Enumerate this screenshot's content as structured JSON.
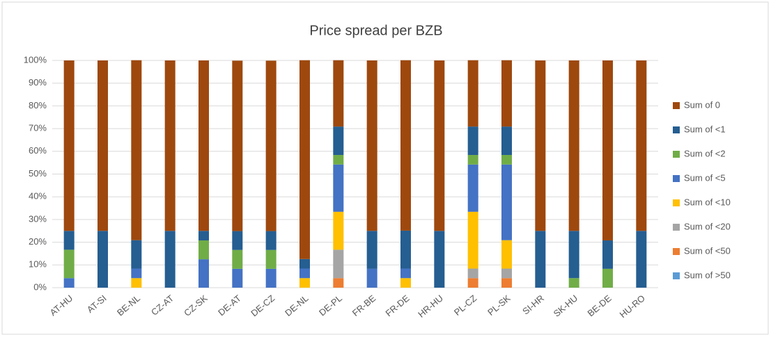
{
  "chart_data": {
    "type": "stacked_bar",
    "title": "Price spread per BZB",
    "categories": [
      "AT-HU",
      "AT-SI",
      "BE-NL",
      "CZ-AT",
      "CZ-SK",
      "DE-AT",
      "DE-CZ",
      "DE-NL",
      "DE-PL",
      "FR-BE",
      "FR-DE",
      "HR-HU",
      "PL-CZ",
      "PL-SK",
      "SI-HR",
      "SK-HU",
      "BE-DE",
      "HU-RO"
    ],
    "series": [
      {
        "name": "Sum of 0",
        "color": "#9e480e",
        "values": [
          75,
          75,
          79.2,
          75,
          75,
          75,
          75,
          87.5,
          29.2,
          75,
          75,
          75,
          29.2,
          29.2,
          75,
          75,
          79.2,
          75
        ]
      },
      {
        "name": "Sum of <1",
        "color": "#255e91",
        "values": [
          8.3,
          25,
          12.5,
          25,
          4.2,
          8.3,
          8.3,
          4.2,
          12.5,
          16.7,
          16.7,
          25,
          12.5,
          12.5,
          25,
          20.8,
          12.5,
          25
        ]
      },
      {
        "name": "Sum of <2",
        "color": "#70ad47",
        "values": [
          12.5,
          0,
          0,
          0,
          8.3,
          8.3,
          8.3,
          0,
          4.2,
          0,
          0,
          0,
          4.2,
          4.2,
          0,
          4.2,
          8.3,
          0
        ]
      },
      {
        "name": "Sum of <5",
        "color": "#4472c4",
        "values": [
          4.2,
          0,
          4.2,
          0,
          12.5,
          8.3,
          8.3,
          4.2,
          20.8,
          8.3,
          4.2,
          0,
          20.8,
          33.3,
          0,
          0,
          0,
          0
        ]
      },
      {
        "name": "Sum of <10",
        "color": "#ffc000",
        "values": [
          0,
          0,
          4.2,
          0,
          0,
          0,
          0,
          4.2,
          16.7,
          0,
          4.2,
          0,
          25,
          12.5,
          0,
          0,
          0,
          0
        ]
      },
      {
        "name": "Sum of <20",
        "color": "#a5a5a5",
        "values": [
          0,
          0,
          0,
          0,
          0,
          0,
          0,
          0,
          12.5,
          0,
          0,
          0,
          4.2,
          4.2,
          0,
          0,
          0,
          0
        ]
      },
      {
        "name": "Sum of <50",
        "color": "#ed7d31",
        "values": [
          0,
          0,
          0,
          0,
          0,
          0,
          0,
          0,
          4.2,
          0,
          0,
          0,
          4.2,
          4.2,
          0,
          0,
          0,
          0
        ]
      },
      {
        "name": "Sum of >50",
        "color": "#5b9bd5",
        "values": [
          0,
          0,
          0,
          0,
          0,
          0,
          0,
          0,
          0,
          0,
          0,
          0,
          0,
          0,
          0,
          0,
          0,
          0
        ]
      }
    ],
    "ylim": [
      0,
      100
    ],
    "yticks": [
      {
        "value": 0,
        "label": "0%"
      },
      {
        "value": 10,
        "label": "10%"
      },
      {
        "value": 20,
        "label": "20%"
      },
      {
        "value": 30,
        "label": "30%"
      },
      {
        "value": 40,
        "label": "40%"
      },
      {
        "value": 50,
        "label": "50%"
      },
      {
        "value": 60,
        "label": "60%"
      },
      {
        "value": 70,
        "label": "70%"
      },
      {
        "value": 80,
        "label": "80%"
      },
      {
        "value": 90,
        "label": "90%"
      },
      {
        "value": 100,
        "label": "100%"
      }
    ],
    "grid": true,
    "legend": "right"
  }
}
